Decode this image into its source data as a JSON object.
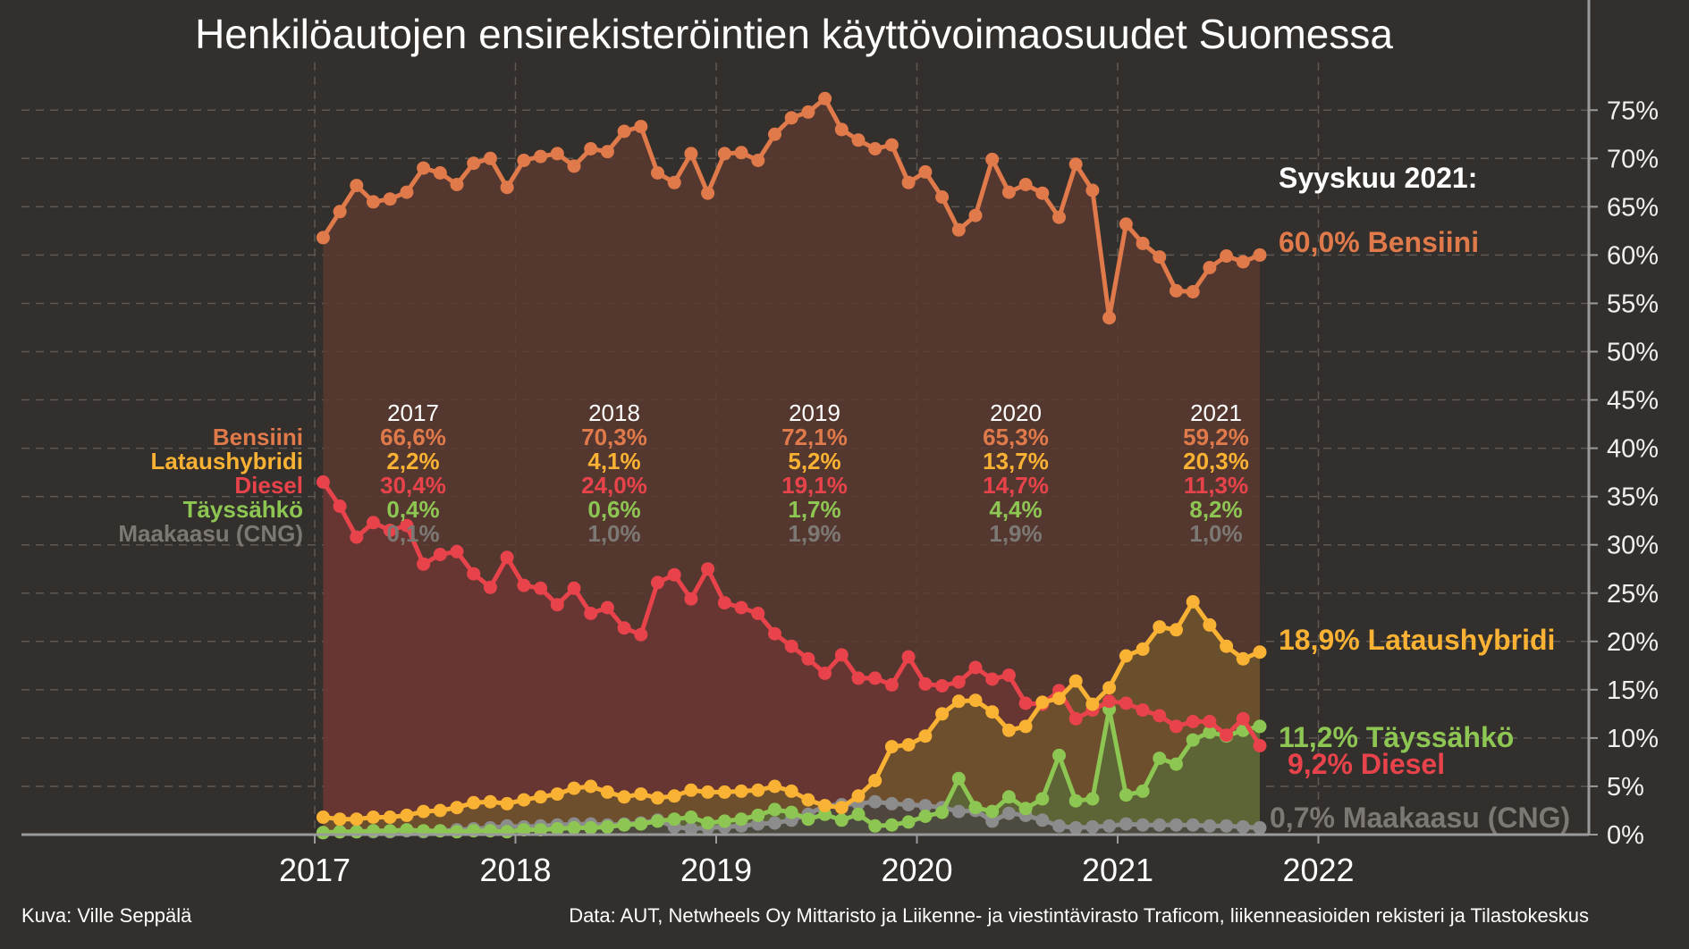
{
  "chart_data": {
    "type": "line",
    "title": "Henkilöautojen ensirekisteröintien käyttövoimaosuudet Suomessa",
    "x_start": "2017-01",
    "x_step": "month",
    "x_ticks": [
      "2017",
      "2018",
      "2019",
      "2020",
      "2021",
      "2022"
    ],
    "y_ticks": [
      "0%",
      "5%",
      "10%",
      "15%",
      "20%",
      "25%",
      "30%",
      "35%",
      "40%",
      "45%",
      "50%",
      "55%",
      "60%",
      "65%",
      "70%",
      "75%"
    ],
    "ylim": [
      0,
      78
    ],
    "grid": true,
    "series": [
      {
        "name": "Bensiini",
        "color": "#e07a4a",
        "fill": "#5a3a30",
        "values": [
          61.8,
          64.5,
          67.2,
          65.5,
          65.8,
          66.5,
          69,
          68.5,
          67.3,
          69.5,
          70,
          67,
          69.8,
          70.2,
          70.5,
          69.2,
          71,
          70.7,
          72.8,
          73.3,
          68.5,
          67.5,
          70.5,
          66.4,
          70.5,
          70.6,
          69.8,
          72.5,
          74.2,
          74.8,
          76.2,
          73,
          71.9,
          71,
          71.4,
          67.5,
          68.6,
          66,
          62.6,
          64.1,
          69.9,
          66.5,
          67.3,
          66.4,
          63.9,
          69.4,
          66.7,
          53.5,
          63.2,
          61.2,
          59.8,
          56.3,
          56.2,
          58.7,
          59.9,
          59.3,
          60.0
        ]
      },
      {
        "name": "Lataushybridi",
        "color": "#f9b233",
        "fill": "#6f542d",
        "values": [
          1.8,
          1.6,
          1.6,
          1.8,
          1.8,
          2.0,
          2.4,
          2.5,
          2.8,
          3.3,
          3.4,
          3.2,
          3.6,
          3.9,
          4.2,
          4.8,
          5.0,
          4.4,
          3.9,
          4.2,
          3.8,
          4.0,
          4.6,
          4.4,
          4.4,
          4.5,
          4.6,
          5.0,
          4.5,
          3.6,
          3.0,
          2.8,
          4.0,
          5.6,
          9.1,
          9.3,
          10.2,
          12.5,
          13.8,
          13.9,
          12.7,
          10.8,
          11.2,
          13.7,
          14.1,
          15.9,
          13.5,
          15.2,
          18.5,
          19.2,
          21.5,
          21.2,
          24.1,
          21.7,
          19.5,
          18.2,
          18.9
        ]
      },
      {
        "name": "Diesel",
        "color": "#e8434b",
        "fill": "#6b3634",
        "values": [
          36.5,
          34,
          30.8,
          32.3,
          31.5,
          32,
          28,
          29,
          29.3,
          27,
          25.6,
          28.7,
          25.8,
          25.5,
          23.8,
          25.5,
          22.9,
          23.5,
          21.4,
          20.7,
          26.1,
          26.9,
          24.4,
          27.5,
          24,
          23.5,
          22.9,
          20.8,
          19.5,
          18.2,
          16.7,
          18.6,
          16.2,
          16.2,
          15.5,
          18.4,
          15.6,
          15.4,
          15.8,
          17.3,
          16.1,
          16.5,
          13.6,
          13.5,
          14.9,
          12,
          12.9,
          13.8,
          13.6,
          12.9,
          12.3,
          11.2,
          11.7,
          11.7,
          10.3,
          12,
          9.2
        ]
      },
      {
        "name": "Täyssähkö",
        "color": "#8dc652",
        "fill": "#5a6838",
        "values": [
          0.2,
          0.3,
          0.3,
          0.4,
          0.4,
          0.5,
          0.4,
          0.4,
          0.3,
          0.4,
          0.4,
          0.3,
          0.5,
          0.5,
          0.6,
          0.7,
          0.7,
          0.8,
          1,
          1.1,
          1.4,
          1.6,
          1.8,
          1.2,
          1.4,
          1.6,
          2,
          2.6,
          2.3,
          1.6,
          2.1,
          1.5,
          2.1,
          0.9,
          1,
          1.3,
          1.9,
          2.3,
          5.8,
          2.8,
          2.4,
          3.9,
          2.7,
          3.7,
          8.2,
          3.5,
          3.7,
          13,
          4.1,
          4.5,
          7.9,
          7.3,
          9.8,
          10.6,
          10.2,
          10.8,
          11.2
        ]
      },
      {
        "name": "Maakaasu (CNG)",
        "color": "#8c8c8c",
        "fill": "#4a4542",
        "values": [
          0.2,
          0.3,
          0.3,
          0.3,
          0.3,
          0.4,
          0.3,
          0.4,
          0.5,
          0.6,
          0.7,
          0.9,
          0.8,
          0.9,
          1.0,
          1.1,
          1.1,
          1.0,
          1.1,
          1.2,
          1.5,
          0.8,
          0.6,
          0.7,
          0.8,
          0.9,
          1.1,
          1.2,
          1.5,
          2.1,
          3.0,
          3.1,
          3.2,
          3.4,
          3.2,
          3.1,
          3.0,
          2.8,
          2.4,
          2.5,
          1.4,
          2.2,
          2.0,
          1.5,
          0.9,
          0.7,
          0.8,
          0.9,
          1.1,
          1.0,
          1.0,
          1.0,
          1.0,
          0.9,
          0.9,
          0.8,
          0.7
        ]
      }
    ]
  },
  "summary": {
    "years": [
      "2017",
      "2018",
      "2019",
      "2020",
      "2021"
    ],
    "rows": [
      {
        "name": "Bensiini",
        "color": "#e07a4a",
        "values": [
          "66,6%",
          "70,3%",
          "72,1%",
          "65,3%",
          "59,2%"
        ]
      },
      {
        "name": "Lataushybridi",
        "color": "#f9b233",
        "values": [
          "2,2%",
          "4,1%",
          "5,2%",
          "13,7%",
          "20,3%"
        ]
      },
      {
        "name": "Diesel",
        "color": "#e8434b",
        "values": [
          "30,4%",
          "24,0%",
          "19,1%",
          "14,7%",
          "11,3%"
        ]
      },
      {
        "name": "Täyssähkö",
        "color": "#8dc652",
        "values": [
          "0,4%",
          "0,6%",
          "1,7%",
          "4,4%",
          "8,2%"
        ]
      },
      {
        "name": "Maakaasu (CNG)",
        "color": "#7c7874",
        "values": [
          "0,1%",
          "1,0%",
          "1,9%",
          "1,9%",
          "1,0%"
        ]
      }
    ]
  },
  "end_labels": {
    "heading": "Syyskuu 2021:",
    "items": [
      {
        "text": "60,0% Bensiini",
        "color": "#e07a4a"
      },
      {
        "text": "18,9% Lataushybridi",
        "color": "#f9b233"
      },
      {
        "text": "11,2% Täyssähkö",
        "color": "#8dc652"
      },
      {
        "text": "9,2% Diesel",
        "color": "#e8434b"
      },
      {
        "text": "0,7% Maakaasu (CNG)",
        "color": "#7c7874"
      }
    ]
  },
  "footer": {
    "credit": "Kuva: Ville Seppälä",
    "source": "Data: AUT, Netwheels Oy Mittaristo ja Liikenne- ja viestintävirasto Traficom, liikenneasioiden rekisteri ja Tilastokeskus"
  }
}
